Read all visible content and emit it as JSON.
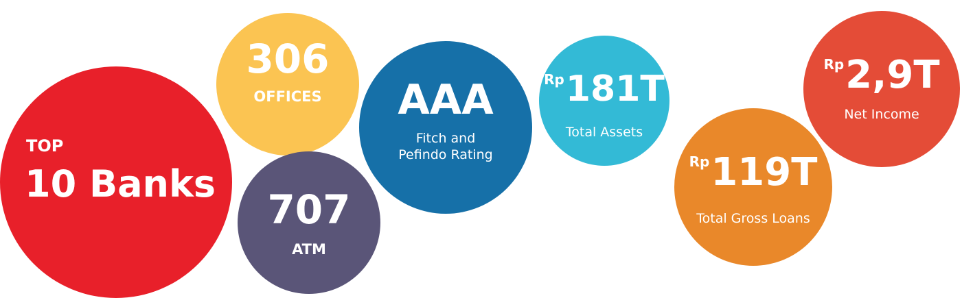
{
  "colors": {
    "top": "#e8202a",
    "offices": "#fbc452",
    "atm": "#5a5578",
    "aaa": "#1670a8",
    "assets": "#33bad6",
    "loans": "#e9882a",
    "income": "#e44c37"
  },
  "bubbles": {
    "top": {
      "label": "TOP",
      "value": "10 Banks"
    },
    "offices": {
      "value": "306",
      "caption": "OFFICES"
    },
    "atm": {
      "value": "707",
      "caption": "ATM"
    },
    "rating": {
      "value": "AAA",
      "caption_line1": "Fitch and",
      "caption_line2": "Pefindo Rating"
    },
    "assets": {
      "currency": "Rp",
      "value": "181T",
      "caption": "Total Assets"
    },
    "loans": {
      "currency": "Rp",
      "value": "119T",
      "caption": "Total Gross Loans"
    },
    "income": {
      "currency": "Rp",
      "value": "2,9T",
      "caption": "Net Income"
    }
  }
}
